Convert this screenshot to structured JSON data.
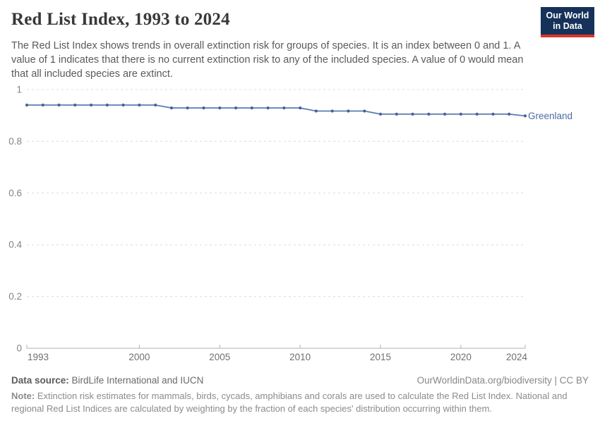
{
  "header": {
    "title": "Red List Index, 1993 to 2024",
    "subtitle": "The Red List Index shows trends in overall extinction risk for groups of species. It is an index between 0 and 1. A value of 1 indicates that there is no current extinction risk to any of the included species. A value of 0 would mean that all included species are extinct.",
    "logo_line1": "Our World",
    "logo_line2": "in Data"
  },
  "chart_data": {
    "type": "line",
    "title": "Red List Index, 1993 to 2024",
    "xlabel": "",
    "ylabel": "",
    "x": [
      1993,
      1994,
      1995,
      1996,
      1997,
      1998,
      1999,
      2000,
      2001,
      2002,
      2003,
      2004,
      2005,
      2006,
      2007,
      2008,
      2009,
      2010,
      2011,
      2012,
      2013,
      2014,
      2015,
      2016,
      2017,
      2018,
      2019,
      2020,
      2021,
      2022,
      2023,
      2024
    ],
    "series": [
      {
        "name": "Greenland",
        "values": [
          0.94,
          0.94,
          0.94,
          0.94,
          0.94,
          0.94,
          0.94,
          0.94,
          0.94,
          0.929,
          0.929,
          0.929,
          0.929,
          0.929,
          0.929,
          0.929,
          0.929,
          0.929,
          0.917,
          0.917,
          0.917,
          0.917,
          0.905,
          0.905,
          0.905,
          0.905,
          0.905,
          0.905,
          0.905,
          0.905,
          0.905,
          0.898
        ]
      }
    ],
    "xlim": [
      1993,
      2024
    ],
    "ylim": [
      0,
      1
    ],
    "yticks": [
      1,
      0.8,
      0.6,
      0.4,
      0.2,
      0
    ],
    "ytick_labels": [
      "1",
      "0.8",
      "0.6",
      "0.4",
      "0.2",
      "0"
    ],
    "xticks": [
      1993,
      2000,
      2005,
      2010,
      2015,
      2020,
      2024
    ],
    "grid": "horizontal-dashed",
    "legend_position": "end-of-line-label"
  },
  "colors": {
    "line": "#5b7cb0",
    "marker": "#44639c",
    "series_label": "#4d6ba3",
    "gridline": "#dcdcdc",
    "axis": "#b0b0b0",
    "ytick_text": "#858585",
    "xtick_text": "#6f6f6f",
    "logo_bg": "#16325a",
    "logo_bar": "#d7362a"
  },
  "footer": {
    "data_source_label": "Data source:",
    "data_source_value": " BirdLife International and IUCN",
    "link": "OurWorldinData.org/biodiversity | CC BY",
    "note_label": "Note:",
    "note_text": " Extinction risk estimates for mammals, birds, cycads, amphibians and corals are used to calculate the Red List Index. National and regional Red List Indices are calculated by weighting by the fraction of each species' distribution occurring within them."
  }
}
